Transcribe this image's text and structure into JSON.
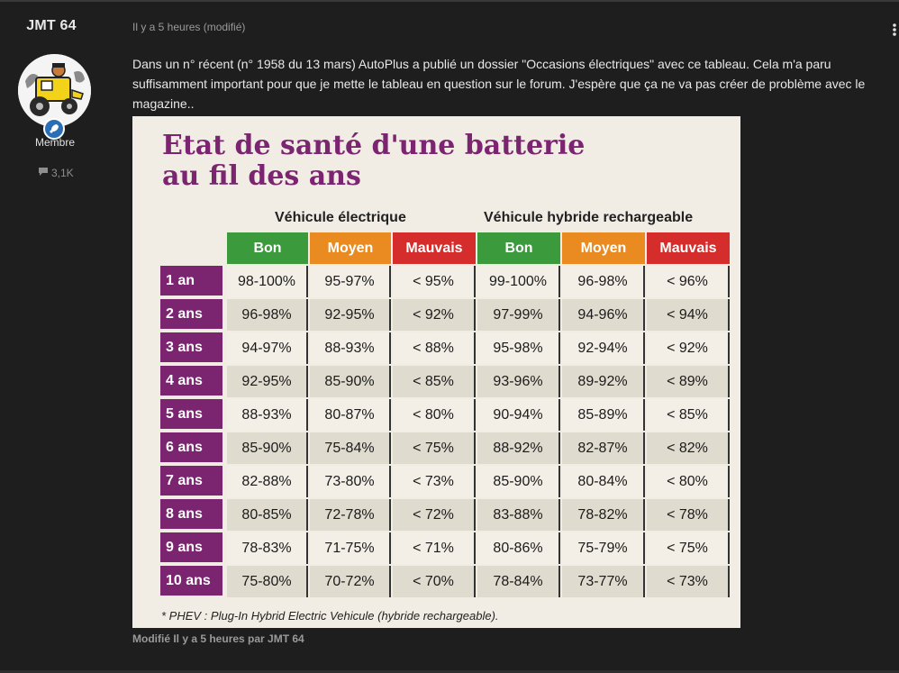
{
  "author": {
    "username": "JMT 64",
    "role": "Membre",
    "post_count": "3,1K",
    "badge_icon": "rocket-icon"
  },
  "post": {
    "meta": "Il y a 5 heures (modifié)",
    "text": "Dans un n° récent (n° 1958 du 13 mars) AutoPlus a publié un dossier \"Occasions électriques\" avec ce tableau. Cela m'a paru suffisamment important pour que je mette le tableau en question sur le forum. J'espère que ça ne va pas créer de problème avec le magazine..",
    "modified": "Modifié Il y a 5 heures par JMT 64"
  },
  "article": {
    "title_line1": "Etat de santé d'une batterie",
    "title_line2": "au fil des ans",
    "group_ev": "Véhicule électrique",
    "group_phev": "Véhicule hybride rechargeable",
    "headers": [
      "Bon",
      "Moyen",
      "Mauvais",
      "Bon",
      "Moyen",
      "Mauvais"
    ],
    "rows": [
      {
        "label": "1 an",
        "values": [
          "98-100%",
          "95-97%",
          "< 95%",
          "99-100%",
          "96-98%",
          "< 96%"
        ]
      },
      {
        "label": "2 ans",
        "values": [
          "96-98%",
          "92-95%",
          "< 92%",
          "97-99%",
          "94-96%",
          "< 94%"
        ]
      },
      {
        "label": "3 ans",
        "values": [
          "94-97%",
          "88-93%",
          "< 88%",
          "95-98%",
          "92-94%",
          "< 92%"
        ]
      },
      {
        "label": "4 ans",
        "values": [
          "92-95%",
          "85-90%",
          "< 85%",
          "93-96%",
          "89-92%",
          "< 89%"
        ]
      },
      {
        "label": "5 ans",
        "values": [
          "88-93%",
          "80-87%",
          "< 80%",
          "90-94%",
          "85-89%",
          "< 85%"
        ]
      },
      {
        "label": "6 ans",
        "values": [
          "85-90%",
          "75-84%",
          "< 75%",
          "88-92%",
          "82-87%",
          "< 82%"
        ]
      },
      {
        "label": "7 ans",
        "values": [
          "82-88%",
          "73-80%",
          "< 73%",
          "85-90%",
          "80-84%",
          "< 80%"
        ]
      },
      {
        "label": "8 ans",
        "values": [
          "80-85%",
          "72-78%",
          "< 72%",
          "83-88%",
          "78-82%",
          "< 78%"
        ]
      },
      {
        "label": "9 ans",
        "values": [
          "78-83%",
          "71-75%",
          "< 71%",
          "80-86%",
          "75-79%",
          "< 75%"
        ]
      },
      {
        "label": "10 ans",
        "values": [
          "75-80%",
          "70-72%",
          "< 70%",
          "78-84%",
          "73-77%",
          "< 73%"
        ]
      }
    ],
    "footnote": "* PHEV : Plug-In Hybrid Electric Vehicule (hybride rechargeable).",
    "colors": {
      "good": "#3a9a3c",
      "medium": "#ea8b22",
      "bad": "#d52d2c",
      "label": "#7b2571"
    }
  }
}
